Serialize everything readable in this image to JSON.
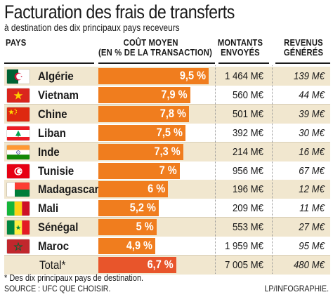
{
  "title": "Facturation des frais de transferts",
  "subtitle": "à destination des dix principaux pays receveurs",
  "headers": {
    "pays": "PAYS",
    "cout_line1": "COÛT MOYEN",
    "cout_line2": "(EN % DE LA TRANSACTION)",
    "montants_line1": "MONTANTS",
    "montants_line2": "ENVOYÉS",
    "revenus_line1": "REVENUS",
    "revenus_line2": "GÉNÉRÉS"
  },
  "footnote": "* Des dix principaux pays de destination.",
  "source": "SOURCE : UFC QUE CHOISIR.",
  "credit": "LP/INFOGRAPHIE.",
  "colors": {
    "bar": "#f07d1e",
    "bar_total": "#e8552b",
    "row_shade": "#f1e7cf"
  },
  "chart_data": {
    "type": "bar",
    "orientation": "horizontal",
    "title": "Facturation des frais de transferts",
    "subtitle": "à destination des dix principaux pays receveurs",
    "grid": false,
    "categories": [
      "Algérie",
      "Vietnam",
      "Chine",
      "Liban",
      "Inde",
      "Tunisie",
      "Madagascar",
      "Mali",
      "Sénégal",
      "Maroc",
      "Total*"
    ],
    "values": [
      9.5,
      7.9,
      7.8,
      7.5,
      7.3,
      7,
      6,
      5.2,
      5,
      4.9,
      6.7
    ],
    "xlim": [
      0,
      9.5
    ],
    "rows": [
      {
        "country": "Algérie",
        "flag": "algeria-flag",
        "cost": 9.5,
        "cost_label": "9,5 %",
        "montant": "1 464 M€",
        "revenu": "139 M€"
      },
      {
        "country": "Vietnam",
        "flag": "vietnam-flag",
        "cost": 7.9,
        "cost_label": "7,9 %",
        "montant": "560 M€",
        "revenu": "44 M€"
      },
      {
        "country": "Chine",
        "flag": "china-flag",
        "cost": 7.8,
        "cost_label": "7,8 %",
        "montant": "501 M€",
        "revenu": "39 M€"
      },
      {
        "country": "Liban",
        "flag": "lebanon-flag",
        "cost": 7.5,
        "cost_label": "7,5 %",
        "montant": "392 M€",
        "revenu": "30 M€"
      },
      {
        "country": "Inde",
        "flag": "india-flag",
        "cost": 7.3,
        "cost_label": "7,3 %",
        "montant": "214 M€",
        "revenu": "16 M€"
      },
      {
        "country": "Tunisie",
        "flag": "tunisia-flag",
        "cost": 7,
        "cost_label": "7 %",
        "montant": "956 M€",
        "revenu": "67 M€"
      },
      {
        "country": "Madagascar",
        "flag": "madagascar-flag",
        "cost": 6,
        "cost_label": "6 %",
        "montant": "196 M€",
        "revenu": "12 M€"
      },
      {
        "country": "Mali",
        "flag": "mali-flag",
        "cost": 5.2,
        "cost_label": "5,2 %",
        "montant": "209 M€",
        "revenu": "11 M€"
      },
      {
        "country": "Sénégal",
        "flag": "senegal-flag",
        "cost": 5,
        "cost_label": "5 %",
        "montant": "553 M€",
        "revenu": "27 M€"
      },
      {
        "country": "Maroc",
        "flag": "morocco-flag",
        "cost": 4.9,
        "cost_label": "4,9 %",
        "montant": "1 959 M€",
        "revenu": "95 M€"
      },
      {
        "country": "Total*",
        "flag": "",
        "cost": 6.7,
        "cost_label": "6,7 %",
        "montant": "7 005 M€",
        "revenu": "480 M€",
        "total": true
      }
    ]
  }
}
